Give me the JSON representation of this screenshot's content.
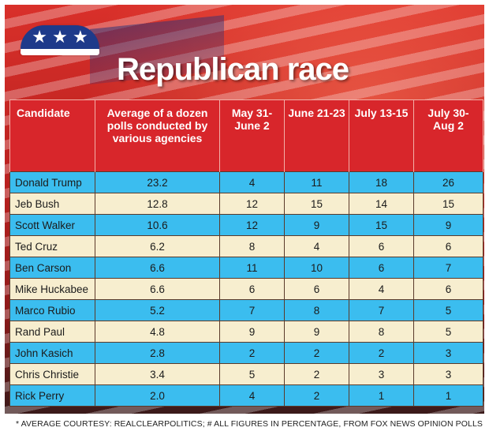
{
  "title": "Republican race",
  "footnote": "* AVERAGE COURTESY: REALCLEARPOLITICS; # ALL FIGURES IN PERCENTAGE, FROM FOX NEWS OPINION POLLS",
  "colors": {
    "header_red": "#d8262b",
    "row_blue": "#3bbdef",
    "row_cream": "#f7eecf",
    "elephant_blue": "#1e3a8a"
  },
  "icons": {
    "logo": "republican-elephant-icon",
    "stars": "★ ★ ★"
  },
  "chart_data": {
    "type": "table",
    "title": "Republican race",
    "columns": [
      "Candidate",
      "Average of a dozen polls conducted by various agencies",
      "May 31-June 2",
      "June 21-23",
      "July 13-15",
      "July 30-Aug 2"
    ],
    "rows": [
      {
        "candidate": "Donald Trump",
        "average": "23.2",
        "values": [
          "4",
          "11",
          "18",
          "26"
        ]
      },
      {
        "candidate": "Jeb Bush",
        "average": "12.8",
        "values": [
          "12",
          "15",
          "14",
          "15"
        ]
      },
      {
        "candidate": "Scott Walker",
        "average": "10.6",
        "values": [
          "12",
          "9",
          "15",
          "9"
        ]
      },
      {
        "candidate": "Ted Cruz",
        "average": "6.2",
        "values": [
          "8",
          "4",
          "6",
          "6"
        ]
      },
      {
        "candidate": "Ben Carson",
        "average": "6.6",
        "values": [
          "11",
          "10",
          "6",
          "7"
        ]
      },
      {
        "candidate": "Mike Huckabee",
        "average": "6.6",
        "values": [
          "6",
          "6",
          "4",
          "6"
        ]
      },
      {
        "candidate": "Marco Rubio",
        "average": "5.2",
        "values": [
          "7",
          "8",
          "7",
          "5"
        ]
      },
      {
        "candidate": "Rand Paul",
        "average": "4.8",
        "values": [
          "9",
          "9",
          "8",
          "5"
        ]
      },
      {
        "candidate": "John Kasich",
        "average": "2.8",
        "values": [
          "2",
          "2",
          "2",
          "3"
        ]
      },
      {
        "candidate": "Chris Christie",
        "average": "3.4",
        "values": [
          "5",
          "2",
          "3",
          "3"
        ]
      },
      {
        "candidate": "Rick Perry",
        "average": "2.0",
        "values": [
          "4",
          "2",
          "1",
          "1"
        ]
      }
    ]
  }
}
